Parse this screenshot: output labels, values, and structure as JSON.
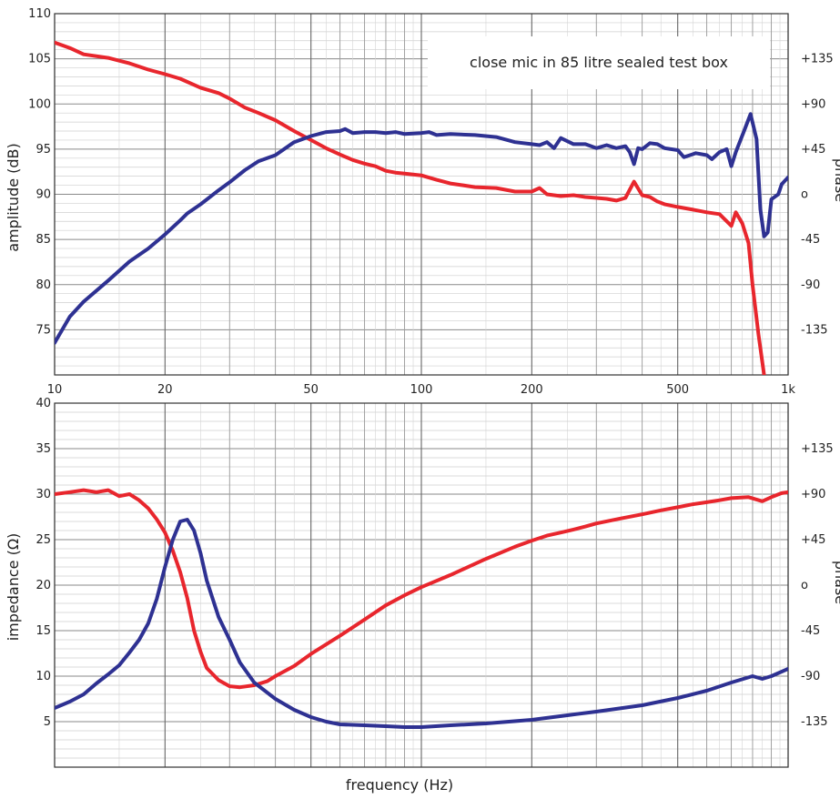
{
  "chart_data": [
    {
      "type": "line",
      "annotation": "close mic in 85 litre sealed test box",
      "xlabel": "",
      "ylabel": "amplitude (dB)",
      "y2label": "phase",
      "xscale": "log",
      "xlim": [
        10,
        1000
      ],
      "ylim": [
        70,
        110
      ],
      "y2lim": [
        -180,
        180
      ],
      "xticks": [
        10,
        20,
        50,
        100,
        200,
        500,
        1000
      ],
      "xtick_labels": [
        "10",
        "20",
        "50",
        "100",
        "200",
        "500",
        "1k"
      ],
      "yticks": [
        75,
        80,
        85,
        90,
        95,
        100,
        105,
        110
      ],
      "ytick_labels": [
        "75",
        "80",
        "85",
        "90",
        "95",
        "100",
        "105",
        "110"
      ],
      "y2ticks": [
        -135,
        -90,
        -45,
        0,
        45,
        90,
        135
      ],
      "y2tick_labels": [
        "-135",
        "-90",
        "-45",
        "o",
        "+45",
        "+90",
        "+135"
      ],
      "grid": true,
      "series": [
        {
          "axis": "left",
          "color": "#e8262d",
          "points": [
            [
              10,
              106.8
            ],
            [
              11,
              106.2
            ],
            [
              12,
              105.5
            ],
            [
              14,
              105.1
            ],
            [
              16,
              104.5
            ],
            [
              18,
              103.8
            ],
            [
              20,
              103.3
            ],
            [
              22,
              102.8
            ],
            [
              25,
              101.8
            ],
            [
              28,
              101.2
            ],
            [
              30,
              100.6
            ],
            [
              33,
              99.6
            ],
            [
              36,
              99.0
            ],
            [
              40,
              98.2
            ],
            [
              45,
              97.0
            ],
            [
              50,
              96.0
            ],
            [
              55,
              95.1
            ],
            [
              60,
              94.4
            ],
            [
              65,
              93.8
            ],
            [
              70,
              93.4
            ],
            [
              75,
              93.1
            ],
            [
              80,
              92.6
            ],
            [
              85,
              92.4
            ],
            [
              90,
              92.3
            ],
            [
              100,
              92.1
            ],
            [
              110,
              91.6
            ],
            [
              120,
              91.2
            ],
            [
              130,
              91.0
            ],
            [
              140,
              90.8
            ],
            [
              160,
              90.7
            ],
            [
              180,
              90.3
            ],
            [
              200,
              90.3
            ],
            [
              210,
              90.7
            ],
            [
              220,
              90.0
            ],
            [
              240,
              89.8
            ],
            [
              260,
              89.9
            ],
            [
              280,
              89.7
            ],
            [
              300,
              89.6
            ],
            [
              320,
              89.5
            ],
            [
              340,
              89.3
            ],
            [
              360,
              89.6
            ],
            [
              380,
              91.4
            ],
            [
              400,
              89.9
            ],
            [
              420,
              89.7
            ],
            [
              440,
              89.2
            ],
            [
              460,
              88.9
            ],
            [
              500,
              88.6
            ],
            [
              550,
              88.3
            ],
            [
              600,
              88.0
            ],
            [
              650,
              87.8
            ],
            [
              700,
              86.5
            ],
            [
              720,
              88.0
            ],
            [
              750,
              86.8
            ],
            [
              780,
              84.6
            ],
            [
              800,
              80
            ],
            [
              830,
              74.5
            ],
            [
              860,
              70
            ]
          ]
        },
        {
          "axis": "right",
          "color": "#2e3192",
          "points": [
            [
              10,
              -148
            ],
            [
              11,
              -122
            ],
            [
              12,
              -107
            ],
            [
              14,
              -86
            ],
            [
              16,
              -67
            ],
            [
              18,
              -54
            ],
            [
              20,
              -40
            ],
            [
              22,
              -26
            ],
            [
              23,
              -19
            ],
            [
              25,
              -10
            ],
            [
              28,
              4
            ],
            [
              30,
              12
            ],
            [
              33,
              24
            ],
            [
              36,
              33
            ],
            [
              40,
              39
            ],
            [
              45,
              52
            ],
            [
              50,
              58
            ],
            [
              55,
              62
            ],
            [
              60,
              63
            ],
            [
              62,
              65
            ],
            [
              65,
              61
            ],
            [
              70,
              62
            ],
            [
              75,
              62
            ],
            [
              80,
              61
            ],
            [
              85,
              62
            ],
            [
              90,
              60
            ],
            [
              100,
              61
            ],
            [
              105,
              62
            ],
            [
              110,
              59
            ],
            [
              120,
              60
            ],
            [
              140,
              59
            ],
            [
              160,
              57
            ],
            [
              180,
              52
            ],
            [
              200,
              50
            ],
            [
              210,
              49
            ],
            [
              220,
              52
            ],
            [
              230,
              46
            ],
            [
              240,
              56
            ],
            [
              260,
              50
            ],
            [
              280,
              50
            ],
            [
              300,
              46
            ],
            [
              320,
              49
            ],
            [
              340,
              46
            ],
            [
              360,
              48
            ],
            [
              370,
              42
            ],
            [
              380,
              30
            ],
            [
              390,
              46
            ],
            [
              400,
              45
            ],
            [
              420,
              51
            ],
            [
              440,
              50
            ],
            [
              460,
              46
            ],
            [
              500,
              44
            ],
            [
              520,
              37
            ],
            [
              540,
              39
            ],
            [
              560,
              41
            ],
            [
              600,
              39
            ],
            [
              620,
              35
            ],
            [
              650,
              42
            ],
            [
              680,
              45
            ],
            [
              700,
              28
            ],
            [
              720,
              42
            ],
            [
              760,
              64
            ],
            [
              790,
              80
            ],
            [
              820,
              55
            ],
            [
              840,
              -15
            ],
            [
              860,
              -42
            ],
            [
              880,
              -38
            ],
            [
              900,
              -5
            ],
            [
              940,
              0
            ],
            [
              960,
              10
            ],
            [
              1000,
              17
            ]
          ]
        }
      ]
    },
    {
      "type": "line",
      "xlabel": "frequency (Hz)",
      "ylabel": "impedance (Ω)",
      "y2label": "phase",
      "xscale": "log",
      "xlim": [
        10,
        1000
      ],
      "ylim": [
        0,
        40
      ],
      "y2lim": [
        -180,
        180
      ],
      "yticks": [
        5,
        10,
        15,
        20,
        25,
        30,
        35,
        40
      ],
      "ytick_labels": [
        "5",
        "10",
        "15",
        "20",
        "25",
        "30",
        "35",
        "40"
      ],
      "y2ticks": [
        -135,
        -90,
        -45,
        0,
        45,
        90,
        135
      ],
      "y2tick_labels": [
        "-135",
        "-90",
        "-45",
        "o",
        "+45",
        "+90",
        "+135"
      ],
      "grid": true,
      "series": [
        {
          "axis": "right",
          "color": "#e8262d",
          "points": [
            [
              10,
              90
            ],
            [
              11,
              92
            ],
            [
              12,
              94
            ],
            [
              13,
              92
            ],
            [
              14,
              94
            ],
            [
              15,
              88
            ],
            [
              16,
              90
            ],
            [
              17,
              84
            ],
            [
              18,
              76
            ],
            [
              19,
              65
            ],
            [
              20,
              52
            ],
            [
              21,
              34
            ],
            [
              22,
              13
            ],
            [
              23,
              -13
            ],
            [
              24,
              -45
            ],
            [
              25,
              -66
            ],
            [
              26,
              -82
            ],
            [
              28,
              -94
            ],
            [
              30,
              -100
            ],
            [
              32,
              -101
            ],
            [
              35,
              -99
            ],
            [
              38,
              -95
            ],
            [
              40,
              -90
            ],
            [
              45,
              -80
            ],
            [
              50,
              -68
            ],
            [
              60,
              -50
            ],
            [
              70,
              -34
            ],
            [
              80,
              -20
            ],
            [
              90,
              -10
            ],
            [
              100,
              -2
            ],
            [
              120,
              10
            ],
            [
              150,
              26
            ],
            [
              180,
              38
            ],
            [
              200,
              44
            ],
            [
              220,
              49
            ],
            [
              240,
              52
            ],
            [
              260,
              55
            ],
            [
              280,
              58
            ],
            [
              300,
              61
            ],
            [
              350,
              66
            ],
            [
              400,
              70
            ],
            [
              450,
              74
            ],
            [
              500,
              77
            ],
            [
              550,
              80
            ],
            [
              600,
              82
            ],
            [
              650,
              84
            ],
            [
              700,
              86
            ],
            [
              780,
              87
            ],
            [
              850,
              83
            ],
            [
              900,
              87
            ],
            [
              960,
              91
            ],
            [
              1000,
              92
            ]
          ]
        },
        {
          "axis": "left",
          "color": "#2e3192",
          "points": [
            [
              10,
              6.5
            ],
            [
              11,
              7.2
            ],
            [
              12,
              8.0
            ],
            [
              13,
              9.2
            ],
            [
              14,
              10.2
            ],
            [
              15,
              11.2
            ],
            [
              16,
              12.6
            ],
            [
              17,
              14.0
            ],
            [
              18,
              15.8
            ],
            [
              19,
              18.5
            ],
            [
              20,
              22.0
            ],
            [
              21,
              25.0
            ],
            [
              22,
              27.0
            ],
            [
              23,
              27.2
            ],
            [
              24,
              26.0
            ],
            [
              25,
              23.5
            ],
            [
              26,
              20.5
            ],
            [
              28,
              16.5
            ],
            [
              30,
              14.0
            ],
            [
              32,
              11.5
            ],
            [
              35,
              9.3
            ],
            [
              40,
              7.5
            ],
            [
              45,
              6.3
            ],
            [
              50,
              5.5
            ],
            [
              55,
              5.0
            ],
            [
              60,
              4.7
            ],
            [
              70,
              4.6
            ],
            [
              80,
              4.5
            ],
            [
              90,
              4.4
            ],
            [
              100,
              4.4
            ],
            [
              120,
              4.6
            ],
            [
              150,
              4.8
            ],
            [
              200,
              5.2
            ],
            [
              250,
              5.7
            ],
            [
              300,
              6.1
            ],
            [
              400,
              6.8
            ],
            [
              500,
              7.6
            ],
            [
              600,
              8.4
            ],
            [
              700,
              9.3
            ],
            [
              800,
              10.0
            ],
            [
              850,
              9.7
            ],
            [
              900,
              10.0
            ],
            [
              1000,
              10.8
            ]
          ]
        }
      ]
    }
  ]
}
